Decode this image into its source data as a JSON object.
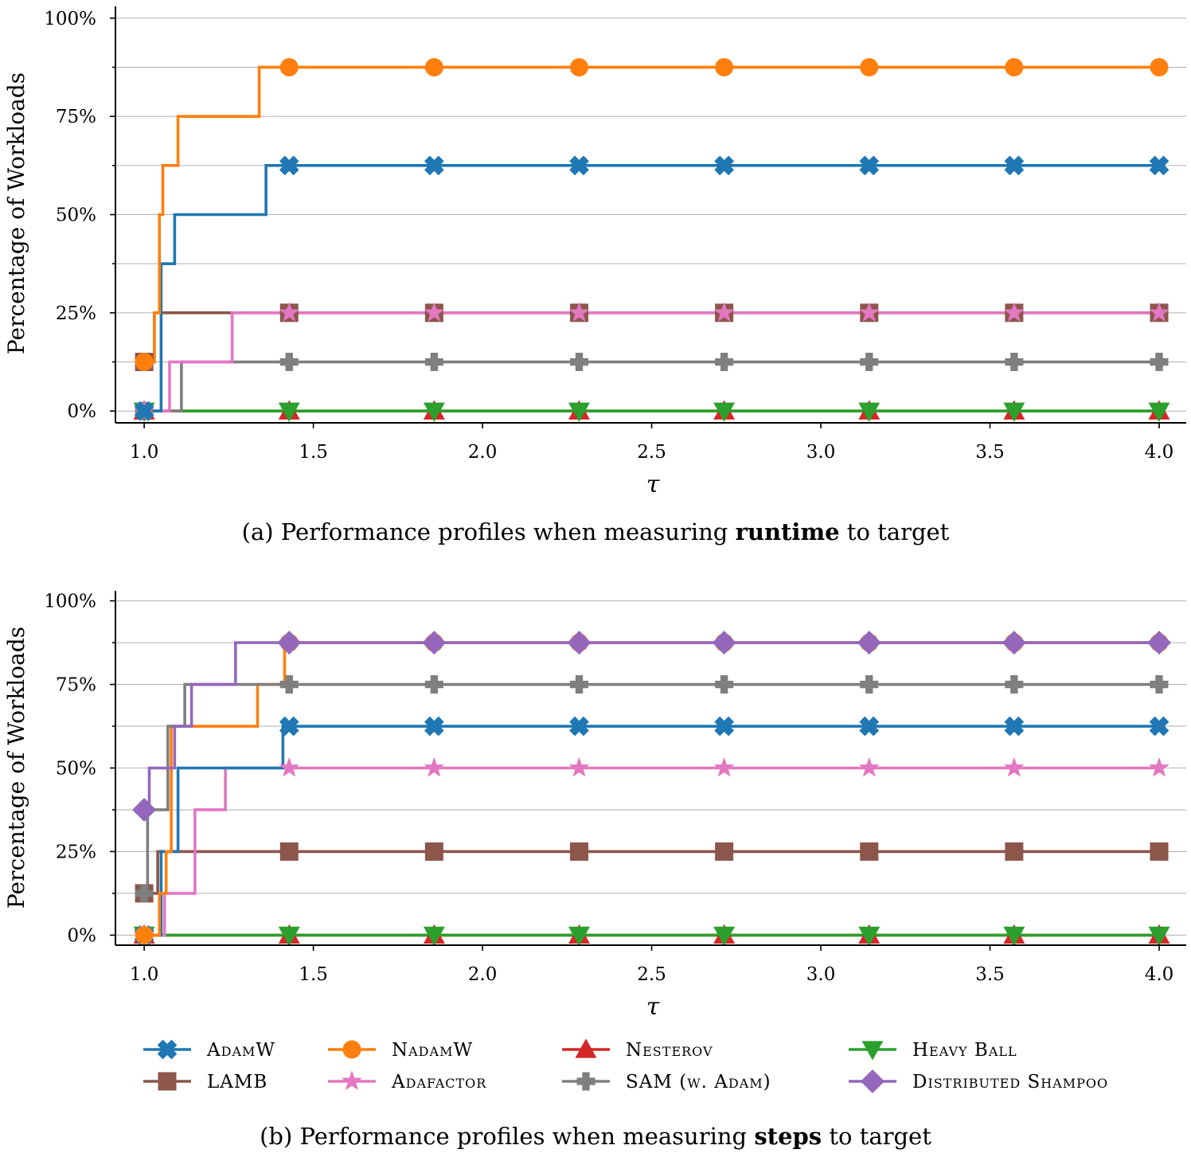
{
  "legend": [
    {
      "key": "adamw",
      "label": "AdamW",
      "color": "#1f77b4",
      "marker": "x-filled-icon"
    },
    {
      "key": "nadamw",
      "label": "NadamW",
      "color": "#ff7f0e",
      "marker": "circle-icon"
    },
    {
      "key": "nesterov",
      "label": "Nesterov",
      "color": "#d62728",
      "marker": "triangle-up-icon"
    },
    {
      "key": "heavyball",
      "label": "Heavy Ball",
      "color": "#2ca02c",
      "marker": "triangle-down-icon"
    },
    {
      "key": "lamb",
      "label": "LAMB",
      "color": "#8c564b",
      "marker": "square-icon"
    },
    {
      "key": "adafactor",
      "label": "Adafactor",
      "color": "#e377c2",
      "marker": "star-icon"
    },
    {
      "key": "sam",
      "label": "SAM (w. Adam)",
      "color": "#7f7f7f",
      "marker": "plus-filled-icon"
    },
    {
      "key": "shampoo",
      "label": "Distributed Shampoo",
      "color": "#9467bd",
      "marker": "diamond-icon"
    }
  ],
  "chart_data": [
    {
      "type": "line",
      "panel": "a",
      "caption_prefix": "(a) Performance profiles when measuring ",
      "caption_bold": "runtime",
      "caption_suffix": " to target",
      "xlabel": "τ",
      "ylabel": "Percentage of Workloads",
      "xlim": [
        0.915,
        4.08
      ],
      "ylim": [
        -3,
        103
      ],
      "xticks": [
        1.0,
        1.5,
        2.0,
        2.5,
        3.0,
        3.5,
        4.0
      ],
      "xtick_labels": [
        "1.0",
        "1.5",
        "2.0",
        "2.5",
        "3.0",
        "3.5",
        "4.0"
      ],
      "yticks": [
        0,
        25,
        50,
        75,
        100
      ],
      "ytick_labels": [
        "0%",
        "25%",
        "50%",
        "75%",
        "100%"
      ],
      "marker_x": [
        1.0,
        1.4286,
        1.8571,
        2.2857,
        2.7143,
        3.1429,
        3.5714,
        4.0
      ],
      "series": [
        {
          "key": "nesterov",
          "steps": [
            [
              1.0,
              0
            ]
          ]
        },
        {
          "key": "heavyball",
          "steps": [
            [
              1.0,
              0
            ]
          ]
        },
        {
          "key": "lamb",
          "steps": [
            [
              1.0,
              12.5
            ],
            [
              1.03,
              25
            ]
          ]
        },
        {
          "key": "sam",
          "steps": [
            [
              1.0,
              0
            ],
            [
              1.11,
              12.5
            ]
          ]
        },
        {
          "key": "adafactor",
          "steps": [
            [
              1.0,
              0
            ],
            [
              1.075,
              12.5
            ],
            [
              1.26,
              25
            ]
          ]
        },
        {
          "key": "adamw",
          "steps": [
            [
              1.0,
              0
            ],
            [
              1.05,
              37.5
            ],
            [
              1.09,
              50
            ],
            [
              1.36,
              62.5
            ]
          ]
        },
        {
          "key": "nadamw",
          "steps": [
            [
              1.0,
              12.5
            ],
            [
              1.03,
              25
            ],
            [
              1.045,
              50
            ],
            [
              1.055,
              62.5
            ],
            [
              1.1,
              75
            ],
            [
              1.34,
              87.5
            ]
          ]
        }
      ]
    },
    {
      "type": "line",
      "panel": "b",
      "caption_prefix": "(b) Performance profiles when measuring ",
      "caption_bold": "steps",
      "caption_suffix": " to target",
      "xlabel": "τ",
      "ylabel": "Percentage of Workloads",
      "xlim": [
        0.915,
        4.08
      ],
      "ylim": [
        -3,
        103
      ],
      "xticks": [
        1.0,
        1.5,
        2.0,
        2.5,
        3.0,
        3.5,
        4.0
      ],
      "xtick_labels": [
        "1.0",
        "1.5",
        "2.0",
        "2.5",
        "3.0",
        "3.5",
        "4.0"
      ],
      "yticks": [
        0,
        25,
        50,
        75,
        100
      ],
      "ytick_labels": [
        "0%",
        "25%",
        "50%",
        "75%",
        "100%"
      ],
      "marker_x": [
        1.0,
        1.4286,
        1.8571,
        2.2857,
        2.7143,
        3.1429,
        3.5714,
        4.0
      ],
      "series": [
        {
          "key": "nesterov",
          "steps": [
            [
              1.0,
              0
            ]
          ]
        },
        {
          "key": "heavyball",
          "steps": [
            [
              1.0,
              0
            ]
          ]
        },
        {
          "key": "lamb",
          "steps": [
            [
              1.0,
              12.5
            ],
            [
              1.04,
              25
            ]
          ]
        },
        {
          "key": "adafactor",
          "steps": [
            [
              1.0,
              0
            ],
            [
              1.06,
              12.5
            ],
            [
              1.15,
              37.5
            ],
            [
              1.24,
              50
            ]
          ]
        },
        {
          "key": "adamw",
          "steps": [
            [
              1.0,
              0
            ],
            [
              1.05,
              25
            ],
            [
              1.1,
              50
            ],
            [
              1.41,
              62.5
            ]
          ]
        },
        {
          "key": "nadamw",
          "steps": [
            [
              1.0,
              0
            ],
            [
              1.045,
              12.5
            ],
            [
              1.065,
              25
            ],
            [
              1.08,
              62.5
            ],
            [
              1.335,
              75
            ],
            [
              1.415,
              87.5
            ]
          ]
        },
        {
          "key": "sam",
          "steps": [
            [
              1.0,
              12.5
            ],
            [
              1.01,
              37.5
            ],
            [
              1.07,
              62.5
            ],
            [
              1.12,
              75
            ]
          ]
        },
        {
          "key": "shampoo",
          "steps": [
            [
              1.0,
              37.5
            ],
            [
              1.015,
              50
            ],
            [
              1.09,
              62.5
            ],
            [
              1.14,
              75
            ],
            [
              1.27,
              87.5
            ]
          ]
        }
      ]
    }
  ]
}
